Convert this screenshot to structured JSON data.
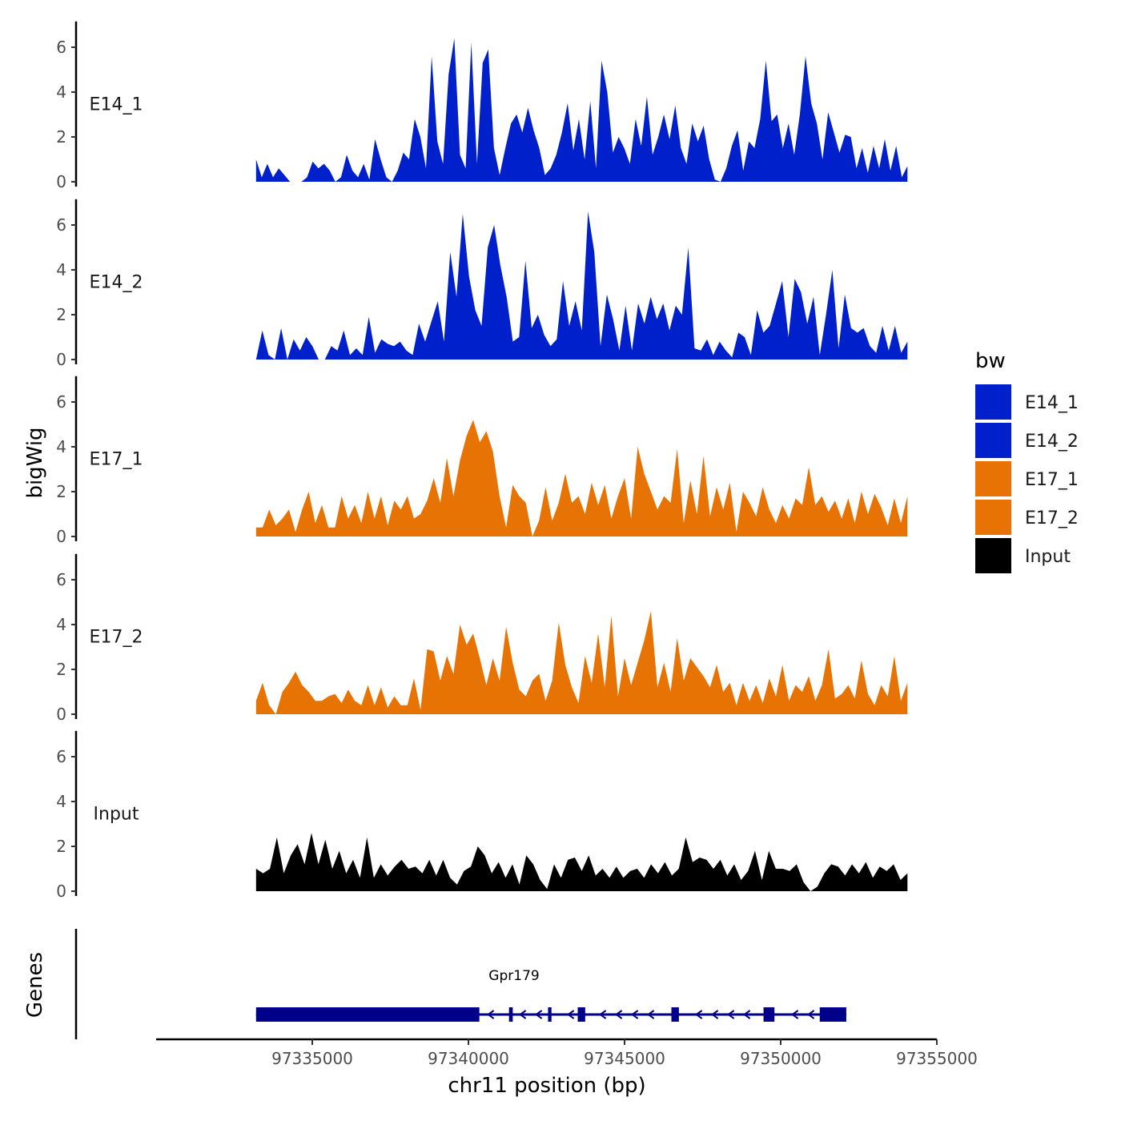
{
  "chart_data": {
    "type": "area",
    "title": "",
    "ylabel": "bigWig",
    "xlabel": "chr11 position (bp)",
    "ylim": [
      0,
      7
    ],
    "yticks": [
      0,
      2,
      4,
      6
    ],
    "xlim": [
      97330000,
      97355000
    ],
    "xticks": [
      97335000,
      97340000,
      97345000,
      97350000,
      97355000
    ],
    "xtick_labels": [
      "97335000",
      "97340000",
      "97345000",
      "97350000",
      "97355000"
    ],
    "legend": {
      "title": "bw",
      "position": "right",
      "entries": [
        {
          "label": "E14_1",
          "color": "#0020CC"
        },
        {
          "label": "E14_2",
          "color": "#0020CC"
        },
        {
          "label": "E17_1",
          "color": "#E87305"
        },
        {
          "label": "E17_2",
          "color": "#E87305"
        },
        {
          "label": "Input",
          "color": "#000000"
        }
      ]
    },
    "series": [
      {
        "name": "E14_1",
        "color": "#0020CC",
        "x_start": 97333200,
        "x_end": 97354060,
        "values": [
          1.0,
          0.2,
          0.8,
          0.2,
          0.6,
          0.3,
          0,
          0,
          0,
          0.2,
          0.9,
          0.6,
          0.8,
          0.5,
          0,
          0.2,
          1.2,
          0.5,
          0.2,
          0.8,
          0.1,
          1.9,
          1.0,
          0.2,
          0,
          0.5,
          1.3,
          1.0,
          2.8,
          2.0,
          0.6,
          5.6,
          1.8,
          0.8,
          4.8,
          6.4,
          1.2,
          0.6,
          6.2,
          0.8,
          5.3,
          5.9,
          1.5,
          0.3,
          1.5,
          2.6,
          3.0,
          2.2,
          3.3,
          2.3,
          1.5,
          0.3,
          0.6,
          1.2,
          2.2,
          3.5,
          1.4,
          2.8,
          1.0,
          3.6,
          0.6,
          5.4,
          4.0,
          1.3,
          2.0,
          1.5,
          0.8,
          2.8,
          1.6,
          3.8,
          1.2,
          2.0,
          3.0,
          1.9,
          3.4,
          1.5,
          0.8,
          2.6,
          1.8,
          2.5,
          1.0,
          0.1,
          0,
          0.6,
          1.6,
          2.3,
          0.5,
          1.8,
          1.5,
          2.8,
          5.4,
          2.7,
          3.0,
          1.5,
          2.6,
          1.2,
          3.0,
          5.6,
          3.5,
          2.6,
          1.0,
          3.1,
          2.2,
          1.3,
          2.1,
          2.0,
          0.6,
          1.5,
          0.4,
          1.6,
          0.6,
          1.9,
          0.5,
          1.6,
          0.2,
          0.7
        ]
      },
      {
        "name": "E14_2",
        "color": "#0020CC",
        "x_start": 97333200,
        "x_end": 97354060,
        "values": [
          0,
          1.3,
          0.2,
          0,
          1.4,
          0,
          0.9,
          0.4,
          1.0,
          0.6,
          0,
          0,
          0.6,
          0.4,
          1.3,
          0.2,
          0.5,
          0.2,
          1.9,
          0.3,
          0.9,
          0.7,
          0.6,
          0.8,
          0.4,
          0.2,
          1.6,
          0.8,
          1.7,
          2.6,
          0.8,
          4.8,
          2.8,
          6.5,
          3.7,
          2.2,
          1.5,
          5.0,
          6.0,
          4.2,
          2.8,
          0.8,
          1.0,
          4.4,
          1.4,
          2.0,
          1.1,
          0.6,
          0.9,
          3.5,
          1.5,
          2.6,
          1.3,
          6.6,
          4.8,
          0.6,
          2.9,
          1.8,
          0.4,
          2.4,
          0.4,
          2.5,
          1.6,
          2.8,
          1.8,
          2.5,
          1.3,
          2.4,
          2.0,
          5.0,
          0.5,
          0.4,
          0.9,
          0.2,
          0.8,
          0.4,
          0.1,
          1.2,
          1.0,
          0.2,
          2.2,
          1.2,
          1.5,
          2.5,
          3.5,
          1.0,
          3.6,
          3.0,
          1.6,
          2.8,
          0.2,
          2.0,
          4.0,
          0.5,
          2.9,
          1.4,
          1.2,
          1.4,
          0.6,
          0.3,
          1.5,
          0.4,
          1.5,
          0.3,
          0.8
        ]
      },
      {
        "name": "E17_1",
        "color": "#E87305",
        "x_start": 97333200,
        "x_end": 97354060,
        "values": [
          0.4,
          0.4,
          1.2,
          0.5,
          0.8,
          1.2,
          0.2,
          1.2,
          2.0,
          0.6,
          1.4,
          0.4,
          0.4,
          1.8,
          0.8,
          1.4,
          0.6,
          2.0,
          0.8,
          1.8,
          0.5,
          1.6,
          1.2,
          1.8,
          0.8,
          1.0,
          1.6,
          2.6,
          1.5,
          3.5,
          1.8,
          3.4,
          4.5,
          5.2,
          4.2,
          4.7,
          3.8,
          1.8,
          0.4,
          2.3,
          1.8,
          1.5,
          0,
          0.7,
          2.2,
          0.7,
          1.5,
          2.8,
          1.5,
          1.8,
          1.0,
          2.4,
          1.4,
          2.3,
          0.8,
          1.8,
          2.6,
          0.8,
          4.0,
          2.8,
          2.0,
          1.2,
          1.8,
          1.5,
          3.9,
          0.6,
          2.5,
          1.0,
          3.6,
          0.9,
          2.2,
          1.2,
          2.4,
          0.2,
          2.0,
          1.5,
          0.9,
          2.2,
          1.2,
          0.6,
          1.4,
          0.8,
          1.7,
          1.4,
          3.1,
          1.4,
          1.8,
          1.1,
          1.6,
          0.8,
          1.7,
          0.6,
          2.0,
          1.0,
          1.9,
          1.3,
          0.5,
          1.7,
          0.6,
          1.8
        ]
      },
      {
        "name": "E17_2",
        "color": "#E87305",
        "x_start": 97333200,
        "x_end": 97354060,
        "values": [
          0.6,
          1.4,
          0.4,
          0,
          1.0,
          1.4,
          1.9,
          1.3,
          1.0,
          0.6,
          0.6,
          0.8,
          0.9,
          0.5,
          1.1,
          0.6,
          0.4,
          1.3,
          0.4,
          1.2,
          0.3,
          0.8,
          0.4,
          0.4,
          1.6,
          0.2,
          2.9,
          2.8,
          1.5,
          2.6,
          1.8,
          4.0,
          3.1,
          3.6,
          2.5,
          1.3,
          2.5,
          1.5,
          3.9,
          2.3,
          1.1,
          0.8,
          1.5,
          1.8,
          0.6,
          1.5,
          4.1,
          2.2,
          1.2,
          0.5,
          2.6,
          1.4,
          3.6,
          1.2,
          4.4,
          0.8,
          2.5,
          1.3,
          2.3,
          3.3,
          4.6,
          1.2,
          2.3,
          1.0,
          3.4,
          1.5,
          2.5,
          2.1,
          1.7,
          1.2,
          2.2,
          1.0,
          1.4,
          0.4,
          1.4,
          0.6,
          1.3,
          0.5,
          1.6,
          0.8,
          2.2,
          0.6,
          1.3,
          1.0,
          1.7,
          0.6,
          1.3,
          2.9,
          0.7,
          0.9,
          1.3,
          0.7,
          2.4,
          0.9,
          0.4,
          1.3,
          0.8,
          2.6,
          0.6,
          1.4
        ]
      },
      {
        "name": "Input",
        "color": "#000000",
        "x_start": 97333200,
        "x_end": 97354060,
        "values": [
          1.0,
          0.8,
          1.0,
          2.4,
          0.8,
          1.6,
          2.1,
          1.2,
          2.6,
          1.2,
          2.3,
          1.0,
          1.8,
          0.8,
          1.4,
          0.6,
          2.4,
          0.6,
          1.2,
          0.7,
          1.1,
          1.4,
          1.0,
          1.1,
          0.8,
          1.4,
          0.7,
          1.4,
          0.6,
          0.3,
          0.9,
          1.1,
          2.0,
          1.6,
          0.8,
          1.3,
          0.6,
          1.2,
          0.3,
          1.6,
          1.2,
          0.5,
          0.1,
          1.2,
          0.6,
          1.4,
          1.5,
          0.9,
          1.6,
          0.7,
          1.0,
          0.6,
          1.1,
          0.6,
          0.9,
          1.0,
          0.6,
          1.2,
          0.8,
          1.3,
          0.7,
          1.0,
          2.4,
          1.3,
          1.5,
          1.4,
          1.0,
          1.4,
          0.7,
          1.2,
          0.5,
          0.9,
          1.8,
          0.5,
          1.8,
          1.0,
          1.0,
          0.9,
          1.2,
          0.4,
          0,
          0.2,
          0.8,
          1.2,
          1.1,
          0.7,
          1.2,
          0.8,
          1.3,
          0.6,
          1.1,
          0.9,
          1.2,
          0.5,
          0.8
        ]
      }
    ],
    "genes_track": {
      "label": "Genes",
      "gene_name": "Gpr179",
      "strand": "-",
      "start": 97333200,
      "end": 97352100,
      "color": "#00008B",
      "exons": [
        [
          97333200,
          97340350
        ],
        [
          97341300,
          97341420
        ],
        [
          97342550,
          97342660
        ],
        [
          97343500,
          97343740
        ],
        [
          97346500,
          97346740
        ],
        [
          97349450,
          97349800
        ],
        [
          97351250,
          97352100
        ]
      ]
    }
  }
}
